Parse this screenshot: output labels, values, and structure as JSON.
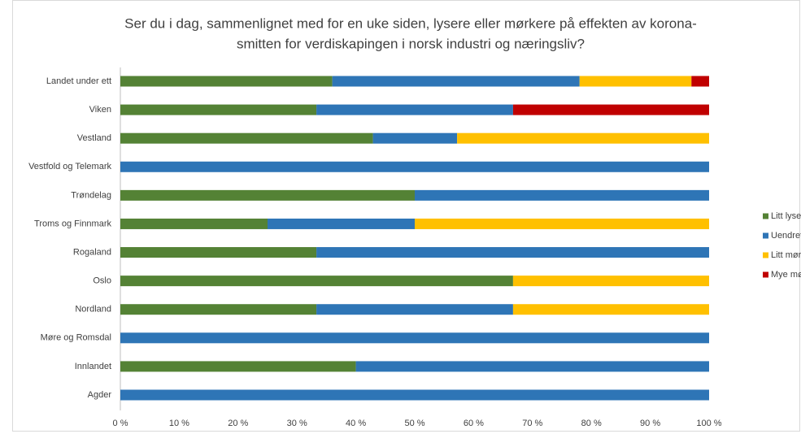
{
  "chart_data": {
    "type": "stacked_barh",
    "title": [
      "Ser du i dag, sammenlignet med for en uke siden, lysere eller mørkere på effekten av korona-",
      "smitten for verdiskapingen i norsk industri og næringsliv?"
    ],
    "categories": [
      "Landet under ett",
      "Viken",
      "Vestland",
      "Vestfold og Telemark",
      "Trøndelag",
      "Troms og Finnmark",
      "Rogaland",
      "Oslo",
      "Nordland",
      "Møre og Romsdal",
      "Innlandet",
      "Agder"
    ],
    "series": [
      {
        "name": "Litt lysere",
        "color": "#548235",
        "values": [
          36,
          33.3,
          42.9,
          0,
          50,
          25,
          33.3,
          66.7,
          33.3,
          0,
          40,
          0
        ]
      },
      {
        "name": "Uendret",
        "color": "#2e75b6",
        "values": [
          42,
          33.4,
          14.3,
          100,
          50,
          25,
          66.7,
          0,
          33.4,
          100,
          60,
          100
        ]
      },
      {
        "name": "Litt mørkere",
        "color": "#ffc000",
        "values": [
          19,
          0,
          42.8,
          0,
          0,
          50,
          0,
          33.3,
          33.3,
          0,
          0,
          0
        ]
      },
      {
        "name": "Mye mørkere",
        "color": "#c00000",
        "values": [
          3,
          33.3,
          0,
          0,
          0,
          0,
          0,
          0,
          0,
          0,
          0,
          0
        ]
      }
    ],
    "xlim": [
      0,
      100
    ],
    "xticks": [
      {
        "value": 0,
        "label": "0 %"
      },
      {
        "value": 10,
        "label": "10 %"
      },
      {
        "value": 20,
        "label": "20 %"
      },
      {
        "value": 30,
        "label": "30 %"
      },
      {
        "value": 40,
        "label": "40 %"
      },
      {
        "value": 50,
        "label": "50 %"
      },
      {
        "value": 60,
        "label": "60 %"
      },
      {
        "value": 70,
        "label": "70 %"
      },
      {
        "value": 80,
        "label": "80 %"
      },
      {
        "value": 90,
        "label": "90 %"
      },
      {
        "value": 100,
        "label": "100 %"
      }
    ],
    "legend": "right",
    "grid": false
  }
}
